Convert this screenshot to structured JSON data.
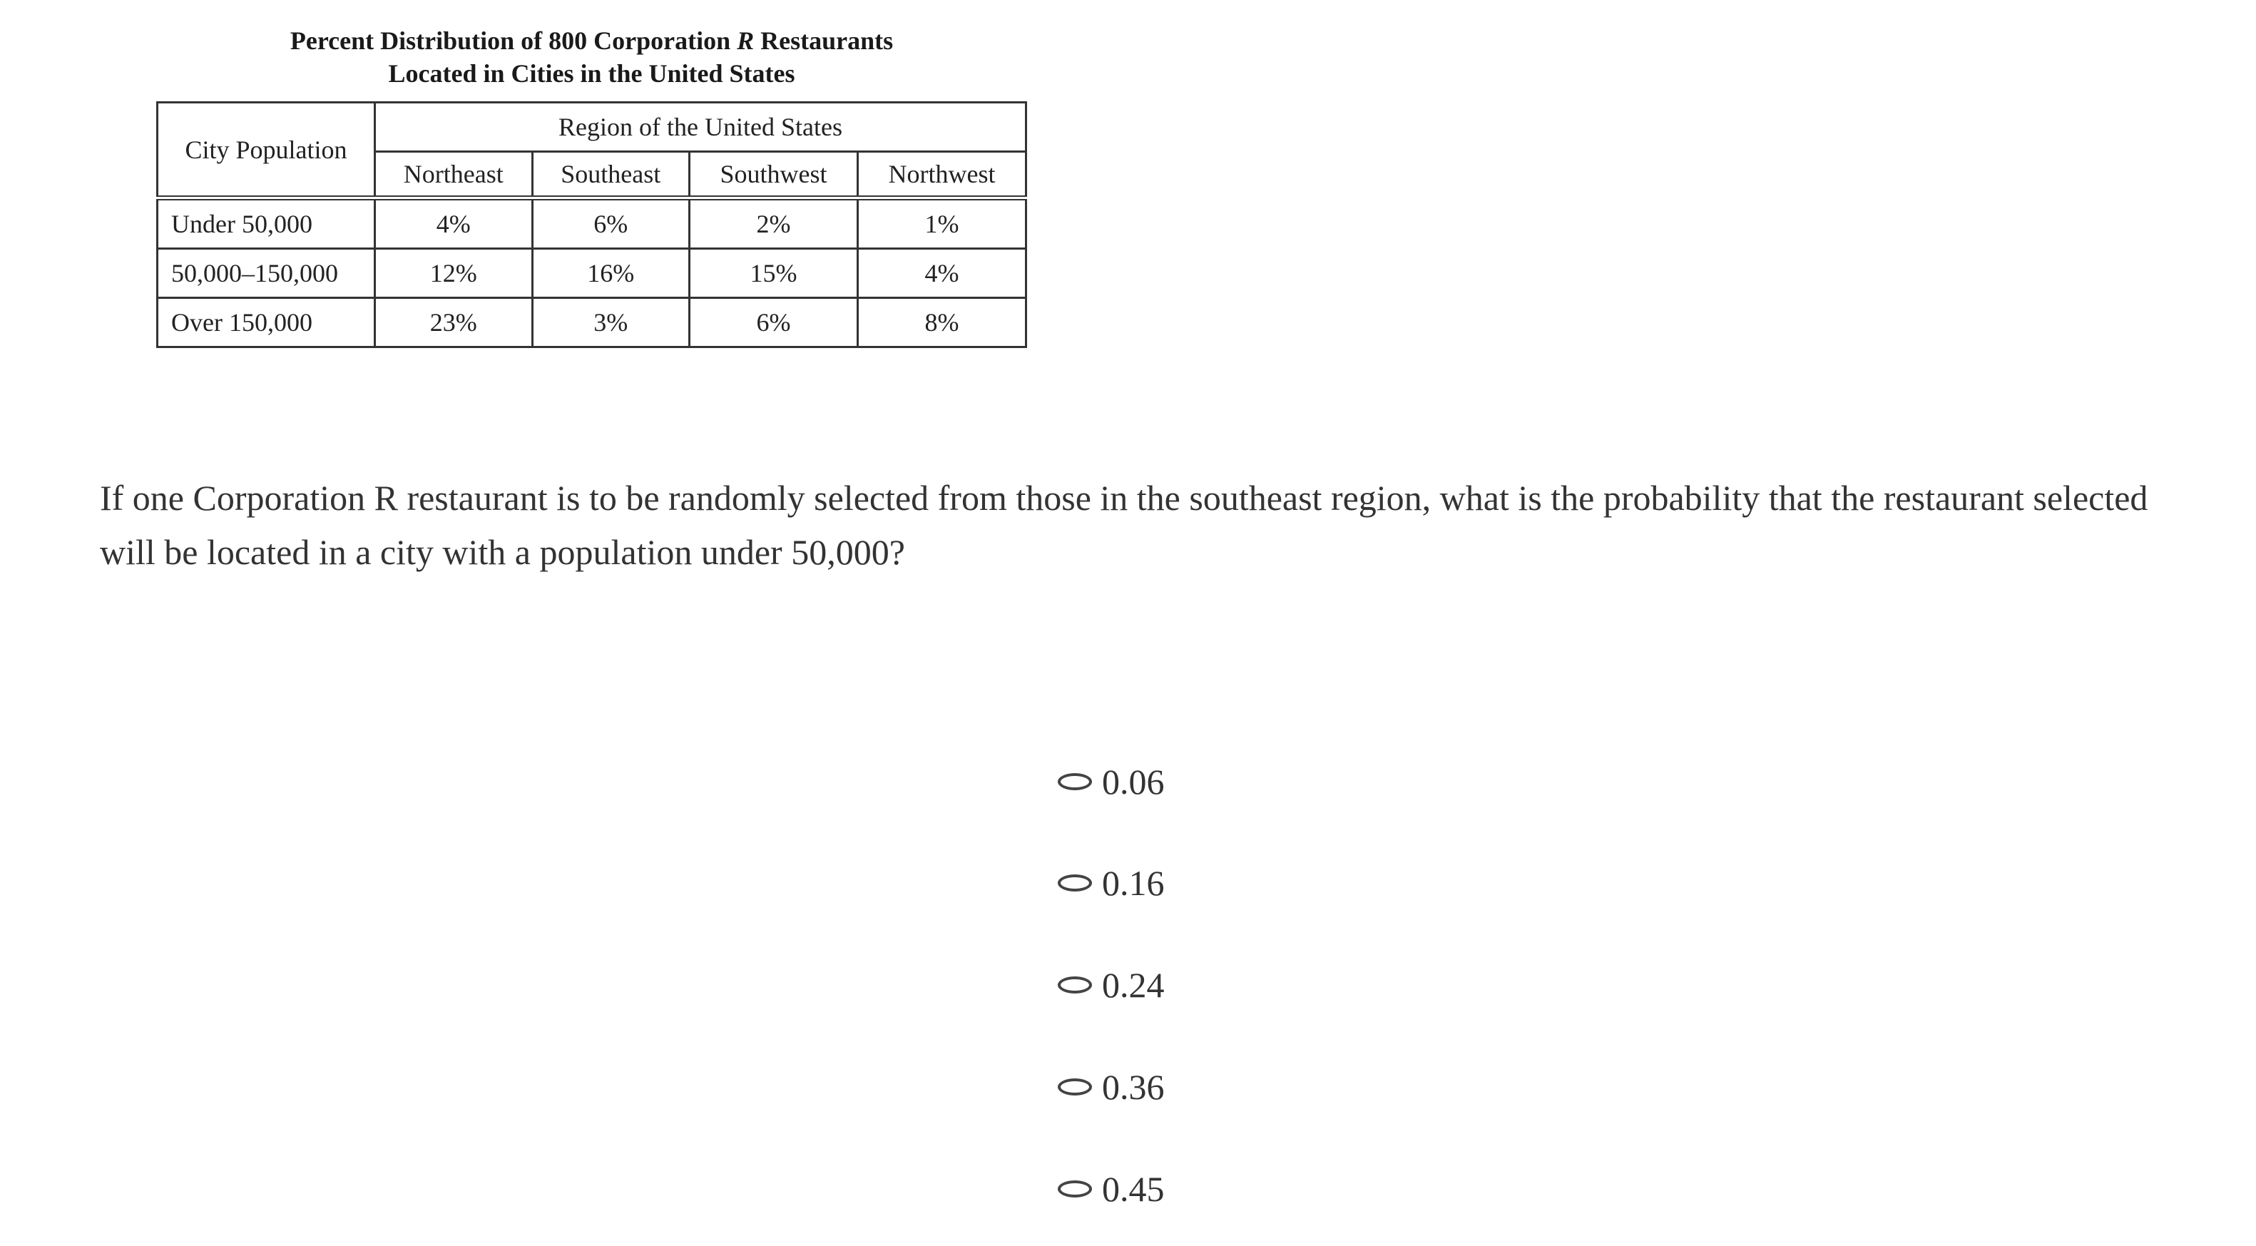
{
  "table": {
    "title_line1": "Percent Distribution of 800 Corporation",
    "title_italic": "R",
    "title_line1_end": "Restaurants",
    "title_line2": "Located in Cities in the United States",
    "row_header": "City Population",
    "group_header": "Region of the United States",
    "columns": [
      "Northeast",
      "Southeast",
      "Southwest",
      "Northwest"
    ],
    "rows": [
      {
        "label": "Under 50,000",
        "values": [
          "4%",
          "6%",
          "2%",
          "1%"
        ]
      },
      {
        "label": "50,000–150,000",
        "values": [
          "12%",
          "16%",
          "15%",
          "4%"
        ]
      },
      {
        "label": "Over 150,000",
        "values": [
          "23%",
          "3%",
          "6%",
          "8%"
        ]
      }
    ]
  },
  "question": "If one Corporation R restaurant is to be randomly selected from those in the southeast region, what is the probability that the restaurant selected will be located in a city with a population under 50,000?",
  "options": [
    "0.06",
    "0.16",
    "0.24",
    "0.36",
    "0.45"
  ]
}
